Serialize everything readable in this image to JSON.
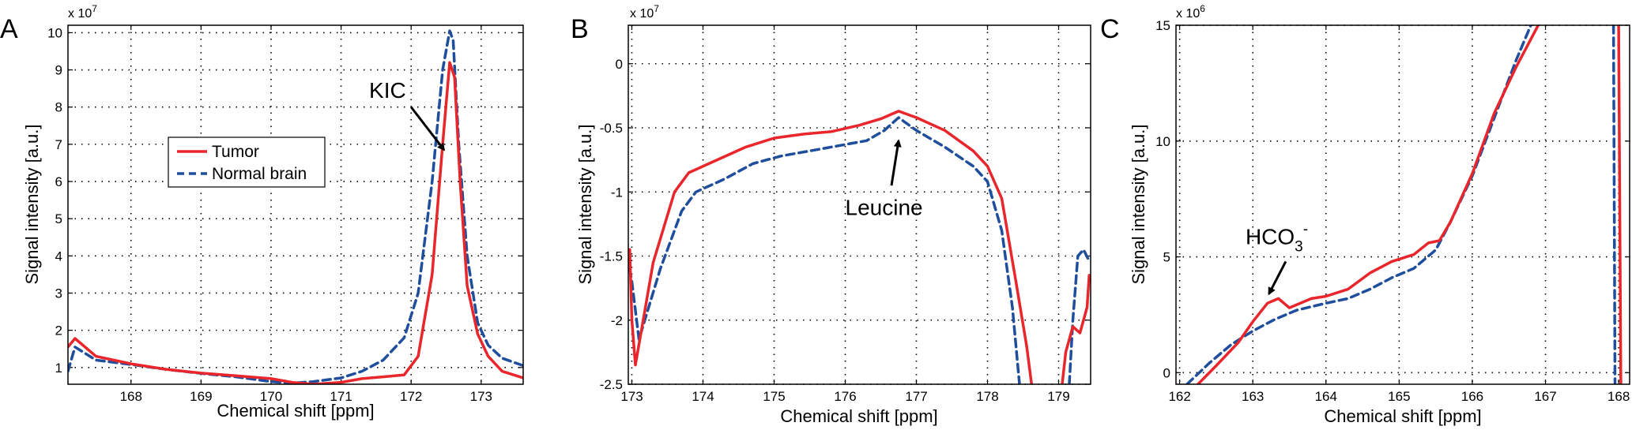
{
  "colors": {
    "tumor": "#e8262b",
    "normal": "#1f4e9c",
    "grid": "#000000",
    "axis": "#000000"
  },
  "chart_data": [
    {
      "type": "line",
      "panel": "A",
      "xlabel": "Chemical shift [ppm]",
      "ylabel": "Signal intensity [a.u.]",
      "multiplier": "x 10",
      "multiplier_exp": "7",
      "xlim": [
        167.1,
        173.6
      ],
      "ylim": [
        0.55,
        10.2
      ],
      "xticks": [
        168,
        169,
        170,
        171,
        172,
        173
      ],
      "yticks": [
        1,
        2,
        3,
        4,
        5,
        6,
        7,
        8,
        9,
        10
      ],
      "legend": {
        "position": "center-left",
        "entries": [
          "Tumor",
          "Normal brain"
        ]
      },
      "annotation": {
        "text": "KIC",
        "arrow_from": [
          172.0,
          8.0
        ],
        "arrow_to": [
          172.47,
          6.85
        ],
        "text_at": [
          171.4,
          8.25
        ]
      },
      "series": [
        {
          "name": "Tumor",
          "style": "solid",
          "x": [
            167.1,
            167.2,
            167.5,
            168.0,
            168.5,
            169.0,
            169.5,
            170.0,
            170.3,
            170.6,
            171.0,
            171.3,
            171.6,
            171.9,
            172.1,
            172.3,
            172.45,
            172.55,
            172.62,
            172.7,
            172.8,
            172.95,
            173.1,
            173.3,
            173.6
          ],
          "y": [
            1.55,
            1.78,
            1.3,
            1.1,
            0.95,
            0.85,
            0.78,
            0.7,
            0.6,
            0.55,
            0.6,
            0.7,
            0.75,
            0.8,
            1.3,
            3.5,
            7.0,
            9.2,
            8.8,
            6.0,
            3.2,
            1.9,
            1.3,
            0.9,
            0.72
          ]
        },
        {
          "name": "Normal brain",
          "style": "dashed",
          "x": [
            167.1,
            167.2,
            167.5,
            168.0,
            168.5,
            169.0,
            169.5,
            170.0,
            170.3,
            170.6,
            171.0,
            171.3,
            171.6,
            171.9,
            172.1,
            172.3,
            172.45,
            172.55,
            172.6,
            172.68,
            172.8,
            172.95,
            173.1,
            173.3,
            173.6
          ],
          "y": [
            0.9,
            1.55,
            1.2,
            1.08,
            0.95,
            0.84,
            0.75,
            0.62,
            0.58,
            0.62,
            0.72,
            0.9,
            1.2,
            1.8,
            3.0,
            6.0,
            9.0,
            10.05,
            9.8,
            7.0,
            4.0,
            2.2,
            1.6,
            1.25,
            1.05
          ]
        }
      ]
    },
    {
      "type": "line",
      "panel": "B",
      "xlabel": "Chemical shift [ppm]",
      "ylabel": "Signal intensity [a.u.]",
      "multiplier": "x 10",
      "multiplier_exp": "7",
      "xlim": [
        172.95,
        179.45
      ],
      "ylim": [
        -2.5,
        0.3
      ],
      "xticks": [
        173,
        174,
        175,
        176,
        177,
        178,
        179
      ],
      "yticks": [
        0,
        -0.5,
        -1,
        -1.5,
        -2,
        -2.5
      ],
      "ytick_labels": [
        "0",
        "-0.5",
        "-1",
        "-1.5",
        "-2",
        "-2.5"
      ],
      "annotation": {
        "text": "Leucine",
        "arrow_from": [
          176.65,
          -0.95
        ],
        "arrow_to": [
          176.75,
          -0.6
        ],
        "text_at": [
          176.0,
          -1.18
        ]
      },
      "series": [
        {
          "name": "Tumor",
          "style": "solid",
          "x": [
            172.97,
            173.0,
            173.05,
            173.3,
            173.6,
            173.8,
            174.2,
            174.6,
            175.0,
            175.4,
            175.8,
            176.2,
            176.5,
            176.75,
            177.0,
            177.4,
            177.8,
            178.0,
            178.2,
            178.4,
            178.55,
            178.62
          ],
          "y": [
            -1.45,
            -2.0,
            -2.35,
            -1.55,
            -1.0,
            -0.85,
            -0.75,
            -0.65,
            -0.58,
            -0.55,
            -0.53,
            -0.48,
            -0.43,
            -0.37,
            -0.42,
            -0.52,
            -0.68,
            -0.8,
            -1.05,
            -1.7,
            -2.2,
            -2.5
          ]
        },
        {
          "name": "Tumor",
          "style": "solid",
          "x": [
            179.05,
            179.1,
            179.2,
            179.3,
            179.4,
            179.43
          ],
          "y": [
            -2.5,
            -2.25,
            -2.05,
            -2.1,
            -1.9,
            -1.65
          ]
        },
        {
          "name": "Normal brain",
          "style": "dashed",
          "x": [
            172.97,
            173.0,
            173.1,
            173.4,
            173.7,
            173.9,
            174.3,
            174.7,
            175.1,
            175.5,
            175.9,
            176.3,
            176.55,
            176.75,
            177.0,
            177.4,
            177.8,
            178.0,
            178.2,
            178.35,
            178.45
          ],
          "y": [
            -1.6,
            -1.7,
            -2.15,
            -1.6,
            -1.15,
            -1.0,
            -0.9,
            -0.78,
            -0.72,
            -0.68,
            -0.64,
            -0.6,
            -0.52,
            -0.42,
            -0.52,
            -0.65,
            -0.8,
            -0.92,
            -1.3,
            -1.9,
            -2.5
          ]
        },
        {
          "name": "Normal brain",
          "style": "dashed",
          "x": [
            179.15,
            179.2,
            179.27,
            179.35,
            179.44
          ],
          "y": [
            -2.5,
            -2.0,
            -1.5,
            -1.45,
            -1.55
          ]
        }
      ]
    },
    {
      "type": "line",
      "panel": "C",
      "xlabel": "Chemical shift [ppm]",
      "ylabel": "Signal intensity [a.u.]",
      "multiplier": "x 10",
      "multiplier_exp": "6",
      "xlim": [
        161.95,
        168.15
      ],
      "ylim": [
        -0.5,
        15
      ],
      "xticks": [
        162,
        163,
        164,
        165,
        166,
        167,
        168
      ],
      "yticks": [
        0,
        5,
        10,
        15
      ],
      "annotation": {
        "text": "HCO",
        "sub": "3",
        "sup": "-",
        "arrow_from": [
          163.45,
          4.8
        ],
        "arrow_to": [
          163.22,
          3.4
        ],
        "text_at": [
          162.9,
          5.55
        ]
      },
      "series": [
        {
          "name": "Tumor",
          "style": "solid",
          "x": [
            162.25,
            162.5,
            162.8,
            163.0,
            163.2,
            163.35,
            163.5,
            163.8,
            164.0,
            164.3,
            164.6,
            164.9,
            165.2,
            165.4,
            165.55,
            165.7,
            166.0,
            166.3,
            166.6,
            166.9
          ],
          "y": [
            -0.5,
            0.3,
            1.3,
            2.2,
            3.0,
            3.2,
            2.8,
            3.2,
            3.3,
            3.6,
            4.3,
            4.8,
            5.1,
            5.6,
            5.7,
            6.5,
            8.6,
            11.2,
            13.2,
            15.0
          ]
        },
        {
          "name": "Tumor",
          "style": "solid",
          "x": [
            168.03,
            168.0
          ],
          "y": [
            -0.5,
            15.0
          ]
        },
        {
          "name": "Normal brain",
          "style": "dashed",
          "x": [
            162.1,
            162.4,
            162.7,
            163.0,
            163.3,
            163.6,
            164.0,
            164.3,
            164.6,
            164.9,
            165.2,
            165.5,
            165.7,
            166.0,
            166.3,
            166.6,
            166.8
          ],
          "y": [
            -0.5,
            0.4,
            1.2,
            1.8,
            2.3,
            2.7,
            3.0,
            3.2,
            3.6,
            4.1,
            4.5,
            5.3,
            6.5,
            8.5,
            11.0,
            13.5,
            15.0
          ]
        },
        {
          "name": "Normal brain",
          "style": "dashed",
          "x": [
            167.93,
            167.95
          ],
          "y": [
            15.0,
            -0.5
          ]
        }
      ]
    }
  ]
}
